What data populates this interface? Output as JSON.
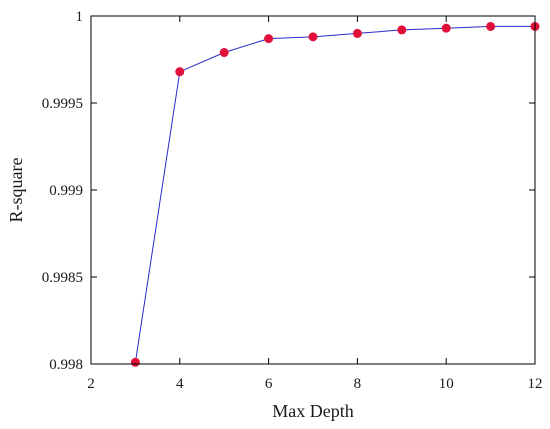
{
  "chart_data": {
    "type": "line",
    "title": "",
    "xlabel": "Max Depth",
    "ylabel": "R-square",
    "xlim": [
      2,
      12
    ],
    "ylim": [
      0.998,
      1
    ],
    "x_ticks": [
      2,
      4,
      6,
      8,
      10,
      12
    ],
    "y_ticks": [
      0.998,
      0.9985,
      0.999,
      0.9995,
      1
    ],
    "y_tick_labels": [
      "0.998",
      "0.9985",
      "0.999",
      "0.9995",
      "1"
    ],
    "grid": false,
    "series": [
      {
        "x": [
          3,
          4,
          5,
          6,
          7,
          8,
          9,
          10,
          11,
          12
        ],
        "y": [
          0.99801,
          0.99968,
          0.99979,
          0.99987,
          0.99988,
          0.9999,
          0.99992,
          0.99993,
          0.99994,
          0.99994
        ],
        "line_color": "#2a2ac8",
        "marker_color": "#e0103a"
      }
    ]
  }
}
